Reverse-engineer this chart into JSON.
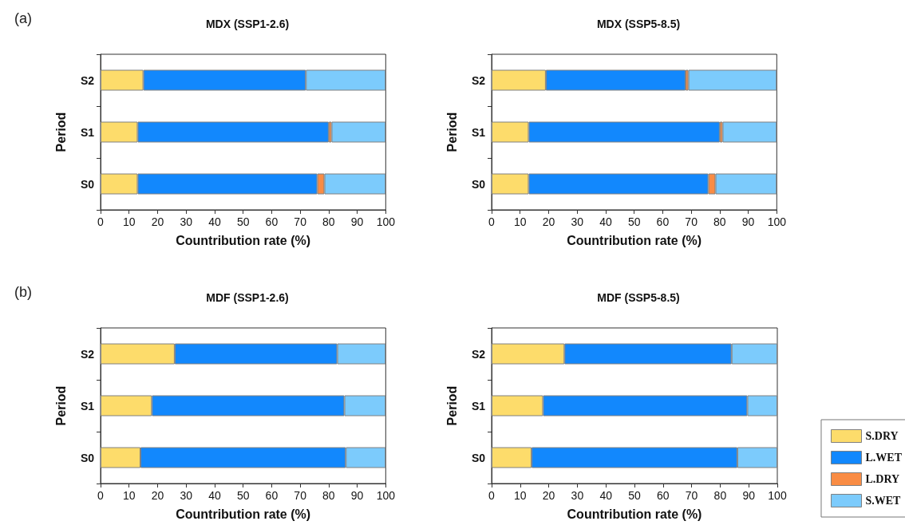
{
  "chart_data": [
    {
      "type": "bar",
      "orientation": "horizontal",
      "stacked": true,
      "title": "MDX (SSP1-2.6)",
      "xlabel": "Countribution rate (%)",
      "ylabel": "Period",
      "annotations": [
        "(a)"
      ],
      "categories": [
        "S2",
        "S1",
        "S0"
      ],
      "xlim": [
        0,
        100
      ],
      "xticks": [
        0,
        10,
        20,
        30,
        40,
        50,
        60,
        70,
        80,
        90,
        100
      ],
      "legend": false,
      "series": [
        {
          "color": "#fddc6b",
          "values": [
            15,
            13,
            13
          ]
        },
        {
          "color": "#1288fd",
          "values": [
            57,
            67,
            63
          ]
        },
        {
          "color": "#f98c44",
          "values": [
            0,
            1,
            2.5
          ]
        },
        {
          "color": "#7ccbfc",
          "values": [
            28,
            19,
            21.5
          ]
        }
      ]
    },
    {
      "type": "bar",
      "orientation": "horizontal",
      "stacked": true,
      "title": "MDX (SSP5-8.5)",
      "xlabel": "Countribution rate (%)",
      "ylabel": "Period",
      "categories": [
        "S2",
        "S1",
        "S0"
      ],
      "xlim": [
        0,
        100
      ],
      "xticks": [
        0,
        10,
        20,
        30,
        40,
        50,
        60,
        70,
        80,
        90,
        100
      ],
      "legend": false,
      "series": [
        {
          "color": "#fddc6b",
          "values": [
            19,
            13,
            13
          ]
        },
        {
          "color": "#1288fd",
          "values": [
            49,
            67,
            63
          ]
        },
        {
          "color": "#f98c44",
          "values": [
            1,
            1,
            2.5
          ]
        },
        {
          "color": "#7ccbfc",
          "values": [
            31,
            19,
            21.5
          ]
        }
      ]
    },
    {
      "type": "bar",
      "orientation": "horizontal",
      "stacked": true,
      "title": "MDF (SSP1-2.6)",
      "xlabel": "Countribution rate (%)",
      "ylabel": "Period",
      "annotations": [
        "(b)"
      ],
      "categories": [
        "S2",
        "S1",
        "S0"
      ],
      "xlim": [
        0,
        100
      ],
      "xticks": [
        0,
        10,
        20,
        30,
        40,
        50,
        60,
        70,
        80,
        90,
        100
      ],
      "legend": false,
      "series": [
        {
          "color": "#fddc6b",
          "values": [
            26,
            18,
            14
          ]
        },
        {
          "color": "#1288fd",
          "values": [
            57,
            67.5,
            72
          ]
        },
        {
          "color": "#f98c44",
          "values": [
            0,
            0,
            0
          ]
        },
        {
          "color": "#7ccbfc",
          "values": [
            17,
            14.5,
            14
          ]
        }
      ]
    },
    {
      "type": "bar",
      "orientation": "horizontal",
      "stacked": true,
      "title": "MDF (SSP5-8.5)",
      "xlabel": "Countribution rate (%)",
      "ylabel": "Period",
      "categories": [
        "S2",
        "S1",
        "S0"
      ],
      "xlim": [
        0,
        100
      ],
      "xticks": [
        0,
        10,
        20,
        30,
        40,
        50,
        60,
        70,
        80,
        90,
        100
      ],
      "legend": "right",
      "series": [
        {
          "name": "S.DRY",
          "color": "#fddc6b",
          "values": [
            25.5,
            18,
            14
          ]
        },
        {
          "name": "L.WET",
          "color": "#1288fd",
          "values": [
            58.5,
            71.5,
            72
          ]
        },
        {
          "name": "L.DRY",
          "color": "#f98c44",
          "values": [
            0,
            0,
            0
          ]
        },
        {
          "name": "S.WET",
          "color": "#7ccbfc",
          "values": [
            16,
            10.5,
            14
          ]
        }
      ]
    }
  ]
}
